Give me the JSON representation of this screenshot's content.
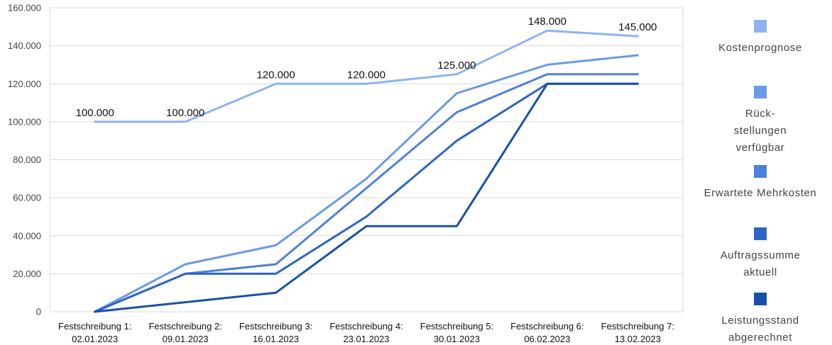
{
  "chart_data": {
    "type": "line",
    "title": "",
    "xlabel": "",
    "ylabel": "",
    "ylim": [
      0,
      160000
    ],
    "yticks": [
      "0",
      "20.000",
      "40.000",
      "60.000",
      "80.000",
      "100.000",
      "120.000",
      "140.000",
      "160.000"
    ],
    "ytick_values": [
      0,
      20000,
      40000,
      60000,
      80000,
      100000,
      120000,
      140000,
      160000
    ],
    "categories": [
      [
        "Festschreibung 1:",
        "02.01.2023"
      ],
      [
        "Festschreibung 2:",
        "09.01.2023"
      ],
      [
        "Festschreibung 3:",
        "16.01.2023"
      ],
      [
        "Festschreibung 4:",
        "23.01.2023"
      ],
      [
        "Festschreibung 5:",
        "30.01.2023"
      ],
      [
        "Festschreibung 6:",
        "06.02.2023"
      ],
      [
        "Festschreibung 7:",
        "13.02.2023"
      ]
    ],
    "grid": true,
    "legend_position": "right",
    "series": [
      {
        "name": "Kostenprognose",
        "legend_lines": [
          "Kostenprognose"
        ],
        "color": "#8DB3F2",
        "values": [
          100000,
          100000,
          120000,
          120000,
          125000,
          148000,
          145000
        ],
        "data_labels": [
          "100.000",
          "100.000",
          "120.000",
          "120.000",
          "125.000",
          "148.000",
          "145.000"
        ]
      },
      {
        "name": "Rück-stellungen verfügbar",
        "legend_lines": [
          "Rück-",
          "stellungen",
          "verfügbar"
        ],
        "color": "#6A9AE8",
        "values": [
          0,
          25000,
          35000,
          70000,
          115000,
          130000,
          135000
        ]
      },
      {
        "name": "Erwartete Mehrkosten",
        "legend_lines": [
          "Erwartete Mehrkosten"
        ],
        "color": "#4C80DA",
        "values": [
          0,
          20000,
          25000,
          65000,
          105000,
          125000,
          125000
        ]
      },
      {
        "name": "Auftragssumme aktuell",
        "legend_lines": [
          "Auftragssumme",
          "aktuell"
        ],
        "color": "#2F64C8",
        "values": [
          0,
          20000,
          20000,
          50000,
          90000,
          120000,
          120000
        ]
      },
      {
        "name": "Leistungsstand abgerechnet",
        "legend_lines": [
          "Leistungsstand",
          "abgerechnet"
        ],
        "color": "#1A4FA8",
        "values": [
          0,
          5000,
          10000,
          45000,
          45000,
          120000,
          120000
        ]
      }
    ]
  }
}
